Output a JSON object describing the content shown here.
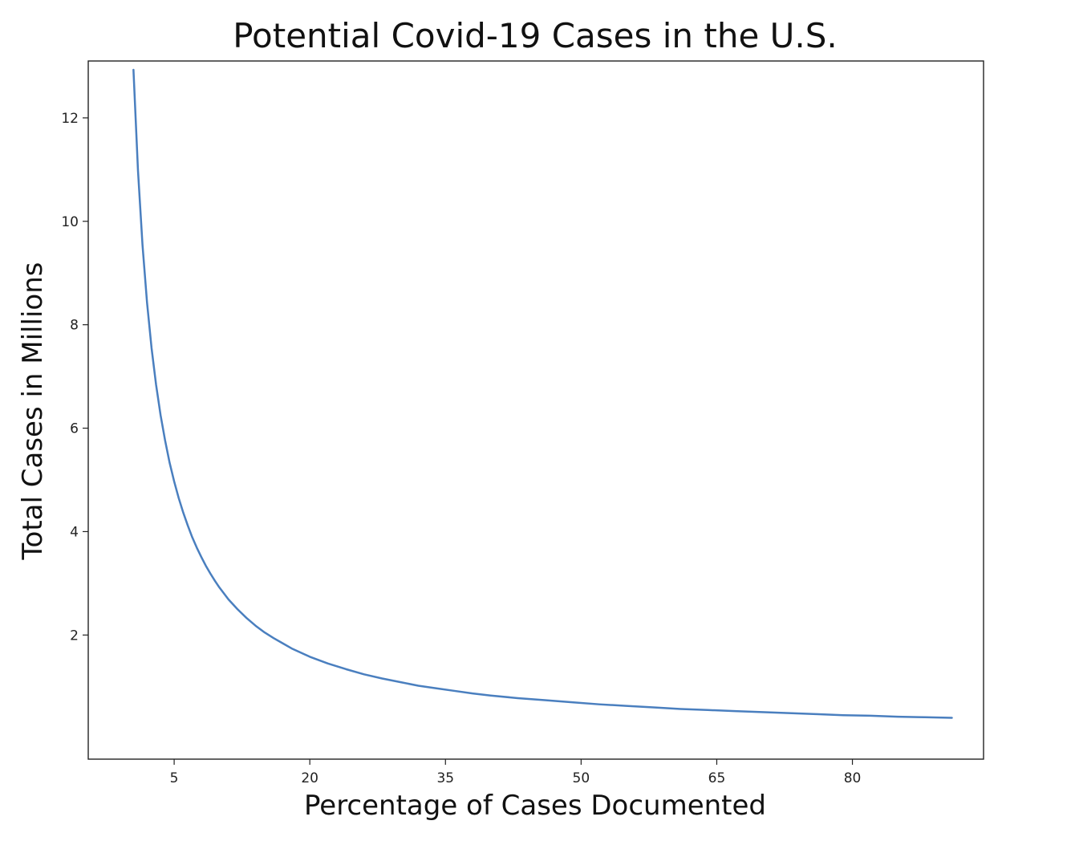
{
  "chart_data": {
    "type": "line",
    "title": "Potential Covid-19 Cases in the U.S.",
    "xlabel": "Percentage of Cases Documented",
    "ylabel": "Total Cases in Millions",
    "xlim": [
      -4.5,
      94.5
    ],
    "ylim": [
      -0.4,
      13.1
    ],
    "xticks": [
      5,
      20,
      35,
      50,
      65,
      80
    ],
    "yticks": [
      2,
      4,
      6,
      8,
      10,
      12
    ],
    "grid": false,
    "line_color": "#4a7fbf",
    "series": [
      {
        "x": [
          0.5,
          1,
          1.5,
          2,
          2.5,
          3,
          3.5,
          4,
          4.5,
          5,
          5.5,
          6,
          6.5,
          7,
          7.5,
          8,
          8.5,
          9,
          9.5,
          10,
          11,
          12,
          13,
          14,
          15,
          16,
          17,
          18,
          19,
          20,
          22,
          24,
          26,
          28,
          30,
          32,
          34,
          36,
          38,
          40,
          43,
          46,
          49,
          52,
          55,
          58,
          61,
          64,
          67,
          70,
          73,
          76,
          79,
          82,
          85,
          88,
          91
        ],
        "y": [
          12.93,
          10.98,
          9.54,
          8.43,
          7.55,
          6.84,
          6.25,
          5.76,
          5.33,
          4.97,
          4.65,
          4.37,
          4.12,
          3.89,
          3.69,
          3.51,
          3.34,
          3.19,
          3.05,
          2.92,
          2.69,
          2.5,
          2.33,
          2.18,
          2.05,
          1.94,
          1.84,
          1.74,
          1.66,
          1.58,
          1.45,
          1.34,
          1.24,
          1.16,
          1.09,
          1.02,
          0.97,
          0.92,
          0.87,
          0.83,
          0.78,
          0.74,
          0.7,
          0.66,
          0.63,
          0.6,
          0.57,
          0.55,
          0.53,
          0.51,
          0.49,
          0.47,
          0.45,
          0.44,
          0.42,
          0.41,
          0.4
        ]
      }
    ]
  }
}
